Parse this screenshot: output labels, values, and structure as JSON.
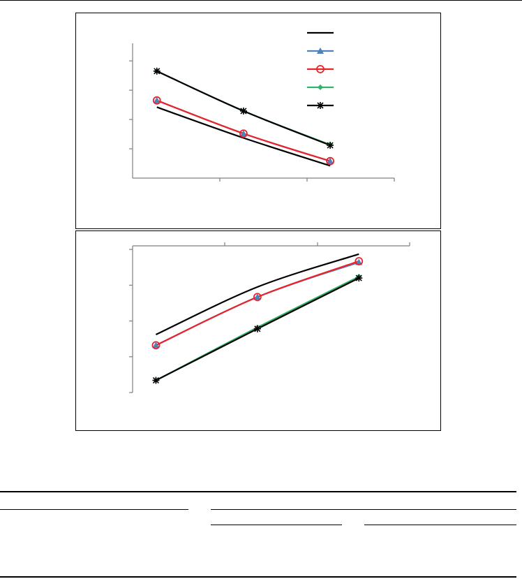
{
  "colors": {
    "s1": "#000000",
    "s2": "#4f81bd",
    "s3": "#e8242a",
    "s4": "#2fb36a",
    "s5": "#000000"
  },
  "legend": {
    "placement": "top-right",
    "entries": [
      {
        "marker": "none",
        "color_key": "s1"
      },
      {
        "marker": "triangle",
        "color_key": "s2"
      },
      {
        "marker": "circle-open",
        "color_key": "s3"
      },
      {
        "marker": "diamond",
        "color_key": "s4"
      },
      {
        "marker": "asterisk",
        "color_key": "s5"
      }
    ]
  },
  "chart_data": [
    {
      "type": "line",
      "x": [
        1,
        2,
        3
      ],
      "xlim": [
        0.72,
        3.74
      ],
      "ylim": [
        0,
        4.6
      ],
      "grid": false,
      "smooth": true,
      "series": [
        {
          "color_key": "s1",
          "marker": "none",
          "values": [
            2.42,
            1.37,
            0.42
          ]
        },
        {
          "color_key": "s2",
          "marker": "triangle",
          "values": [
            2.65,
            1.52,
            0.58
          ]
        },
        {
          "color_key": "s3",
          "marker": "circle-open",
          "values": [
            2.65,
            1.52,
            0.58
          ]
        },
        {
          "color_key": "s4",
          "marker": "diamond",
          "values": [
            3.65,
            2.29,
            1.14
          ]
        },
        {
          "color_key": "s5",
          "marker": "asterisk",
          "values": [
            3.65,
            2.29,
            1.12
          ]
        }
      ]
    },
    {
      "type": "line",
      "x": [
        1,
        2,
        3
      ],
      "xlim": [
        0.77,
        3.5
      ],
      "ylim": [
        0,
        4.1
      ],
      "x_axis_position": "top",
      "grid": false,
      "smooth": true,
      "series": [
        {
          "color_key": "s1",
          "marker": "none",
          "values": [
            1.62,
            2.95,
            3.87
          ]
        },
        {
          "color_key": "s2",
          "marker": "triangle",
          "values": [
            1.32,
            2.67,
            3.64
          ]
        },
        {
          "color_key": "s3",
          "marker": "circle-open",
          "values": [
            1.32,
            2.67,
            3.67
          ]
        },
        {
          "color_key": "s4",
          "marker": "diamond",
          "values": [
            0.34,
            1.82,
            3.24
          ]
        },
        {
          "color_key": "s5",
          "marker": "asterisk",
          "values": [
            0.34,
            1.78,
            3.2
          ]
        }
      ]
    }
  ]
}
